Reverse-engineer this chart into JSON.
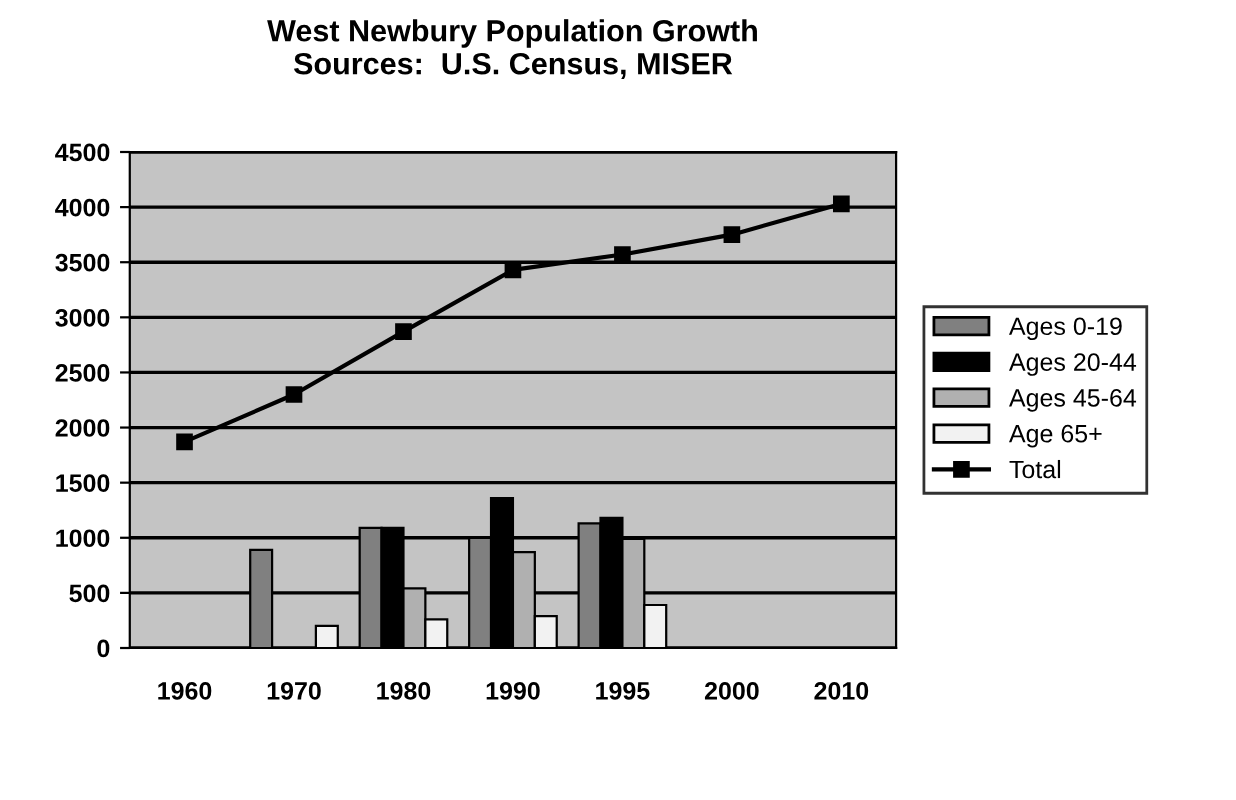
{
  "chart_data": {
    "type": "bar",
    "title": "West Newbury Population Growth\nSources:  U.S. Census, MISER",
    "categories": [
      "1960",
      "1970",
      "1980",
      "1990",
      "1995",
      "2000",
      "2010"
    ],
    "series": [
      {
        "name": "Ages 0-19",
        "color": "#808080",
        "values": [
          null,
          890,
          1090,
          1000,
          1130,
          null,
          null
        ]
      },
      {
        "name": "Ages 20-44",
        "color": "#000000",
        "values": [
          null,
          null,
          1090,
          1360,
          1180,
          null,
          null
        ]
      },
      {
        "name": "Ages 45-64",
        "color": "#b0b0b0",
        "values": [
          null,
          null,
          540,
          870,
          990,
          null,
          null
        ]
      },
      {
        "name": "Age 65+",
        "color": "#f2f2f2",
        "values": [
          null,
          200,
          260,
          290,
          390,
          null,
          null
        ]
      },
      {
        "name": "Total",
        "type": "line",
        "color": "#000000",
        "marker": "square",
        "values": [
          1870,
          2300,
          2870,
          3430,
          3570,
          3750,
          4030
        ]
      }
    ],
    "ylim": [
      0,
      4500
    ],
    "yticks": [
      0,
      500,
      1000,
      1500,
      2000,
      2500,
      3000,
      3500,
      4000,
      4500
    ],
    "grid": "y",
    "legend": "right"
  }
}
